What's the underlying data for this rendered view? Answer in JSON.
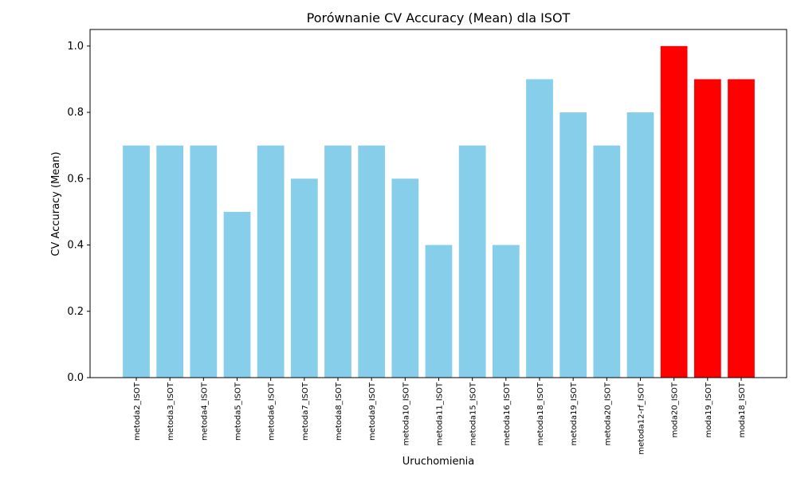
{
  "chart_data": {
    "type": "bar",
    "title": "Porównanie CV Accuracy (Mean) dla ISOT",
    "xlabel": "Uruchomienia",
    "ylabel": "CV Accuracy (Mean)",
    "ylim": [
      0,
      1.05
    ],
    "yticks": [
      "0.0",
      "0.2",
      "0.4",
      "0.6",
      "0.8",
      "1.0"
    ],
    "ytick_values": [
      0.0,
      0.2,
      0.4,
      0.6,
      0.8,
      1.0
    ],
    "categories": [
      "metoda2_ISOT",
      "metoda3_ISOT",
      "metoda4_ISOT",
      "metoda5_ISOT",
      "metoda6_ISOT",
      "metoda7_ISOT",
      "metoda8_ISOT",
      "metoda9_ISOT",
      "metoda10_ISOT",
      "metoda11_ISOT",
      "metoda15_ISOT",
      "metoda16_ISOT",
      "metoda18_ISOT",
      "metoda19_ISOT",
      "metoda20_ISOT",
      "metoda12-rf_ISOT",
      "moda20_ISOT",
      "moda19_ISOT",
      "moda18_ISOT"
    ],
    "values": [
      0.7,
      0.7,
      0.7,
      0.5,
      0.7,
      0.6,
      0.7,
      0.7,
      0.6,
      0.4,
      0.7,
      0.4,
      0.9,
      0.8,
      0.7,
      0.8,
      1.0,
      0.9,
      0.9
    ],
    "bar_colors": [
      "#87ceeb",
      "#87ceeb",
      "#87ceeb",
      "#87ceeb",
      "#87ceeb",
      "#87ceeb",
      "#87ceeb",
      "#87ceeb",
      "#87ceeb",
      "#87ceeb",
      "#87ceeb",
      "#87ceeb",
      "#87ceeb",
      "#87ceeb",
      "#87ceeb",
      "#87ceeb",
      "#ff0000",
      "#ff0000",
      "#ff0000"
    ],
    "grid": false
  }
}
